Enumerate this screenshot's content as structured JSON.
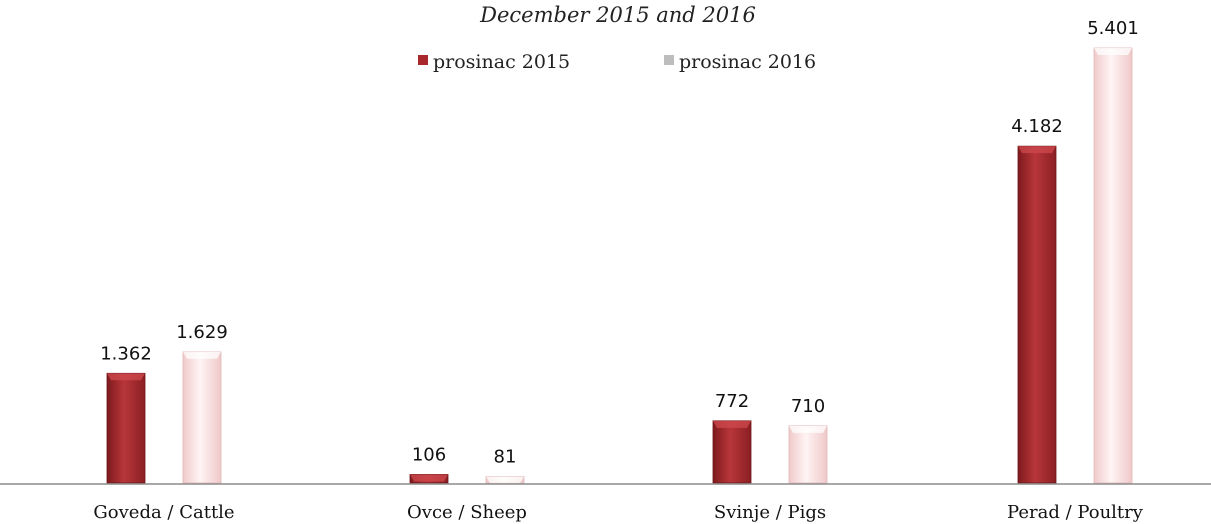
{
  "chart_data": {
    "type": "bar",
    "title": "",
    "subtitle": "December 2015 and 2016",
    "categories": [
      "Goveda / Cattle",
      "Ovce / Sheep",
      "Svinje / Pigs",
      "Perad / Poultry"
    ],
    "series": [
      {
        "name": "prosinac 2015",
        "values": [
          1362,
          106,
          772,
          4182
        ],
        "labels": [
          "1.362",
          "106",
          "772",
          "4.182"
        ],
        "color": "#a8282c"
      },
      {
        "name": "prosinac 2016",
        "values": [
          1629,
          81,
          710,
          5401
        ],
        "labels": [
          "1.629",
          "81",
          "710",
          "5.401"
        ],
        "color": "#f6dcdc"
      }
    ],
    "ylim": [
      0,
      5401
    ],
    "legend": "top-center",
    "grid": false
  }
}
